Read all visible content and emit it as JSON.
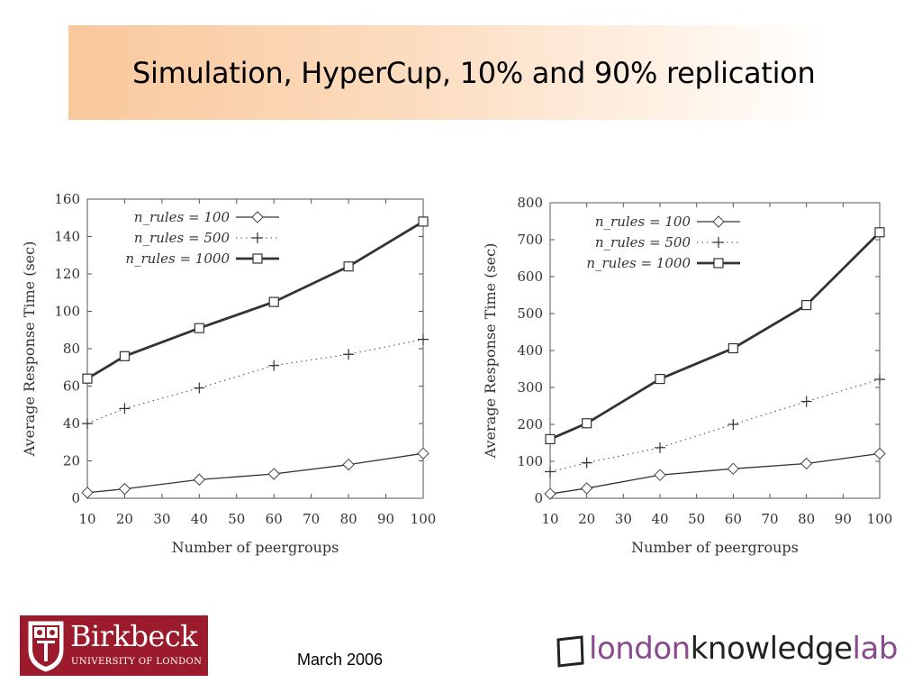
{
  "slide": {
    "title": "Simulation, HyperCup, 10% and 90% replication",
    "date": "March 2006"
  },
  "logos": {
    "birkbeck_name": "Birkbeck",
    "birkbeck_sub": "UNIVERSITY OF LONDON",
    "lkl_part1": "london",
    "lkl_part2": "knowledge",
    "lkl_part3": "lab"
  },
  "chart_data": [
    {
      "type": "line",
      "xlabel": "Number of peergroups",
      "ylabel": "Average Response Time (sec)",
      "xlim": [
        10,
        100
      ],
      "ylim": [
        0,
        160
      ],
      "xticks": [
        10,
        20,
        30,
        40,
        50,
        60,
        70,
        80,
        90,
        100
      ],
      "yticks": [
        0,
        20,
        40,
        60,
        80,
        100,
        120,
        140,
        160
      ],
      "x": [
        10,
        20,
        40,
        60,
        80,
        100
      ],
      "legend_position": "top-left",
      "grid": false,
      "series": [
        {
          "name": "n_rules = 100",
          "marker": "diamond",
          "style": "thin",
          "values": [
            3,
            5,
            10,
            13,
            18,
            24
          ]
        },
        {
          "name": "n_rules = 500",
          "marker": "plus",
          "style": "dotted",
          "values": [
            40,
            48,
            59,
            71,
            77,
            85
          ]
        },
        {
          "name": "n_rules = 1000",
          "marker": "square",
          "style": "thick",
          "values": [
            64,
            76,
            91,
            105,
            124,
            148
          ]
        }
      ]
    },
    {
      "type": "line",
      "xlabel": "Number of peergroups",
      "ylabel": "Average Response Time (sec)",
      "xlim": [
        10,
        100
      ],
      "ylim": [
        0,
        800
      ],
      "xticks": [
        10,
        20,
        30,
        40,
        50,
        60,
        70,
        80,
        90,
        100
      ],
      "yticks": [
        0,
        100,
        200,
        300,
        400,
        500,
        600,
        700,
        800
      ],
      "x": [
        10,
        20,
        40,
        60,
        80,
        100
      ],
      "legend_position": "top-left",
      "grid": false,
      "series": [
        {
          "name": "n_rules = 100",
          "marker": "diamond",
          "style": "thin",
          "values": [
            12,
            27,
            63,
            80,
            94,
            121
          ]
        },
        {
          "name": "n_rules = 500",
          "marker": "plus",
          "style": "dotted",
          "values": [
            72,
            96,
            137,
            200,
            262,
            322
          ]
        },
        {
          "name": "n_rules = 1000",
          "marker": "square",
          "style": "thick",
          "values": [
            160,
            203,
            323,
            406,
            523,
            720
          ]
        }
      ]
    }
  ]
}
